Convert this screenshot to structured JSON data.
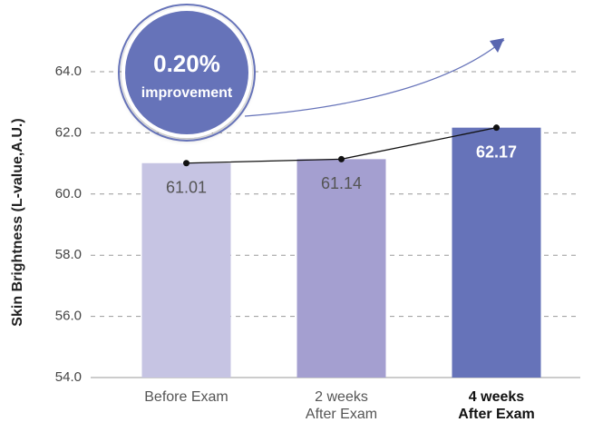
{
  "chart_data": {
    "type": "bar",
    "y_label": "Skin Brightness (L-value,A.U.)",
    "categories": [
      "Before Exam",
      "2 weeks\nAfter Exam",
      "4 weeks\nAfter Exam"
    ],
    "values": [
      61.01,
      61.14,
      62.17
    ],
    "colors": [
      "#c6c4e3",
      "#a49fd0",
      "#6673b9"
    ],
    "label_colors": [
      "#555555",
      "#555555",
      "#ffffff"
    ],
    "highlight_index": 2,
    "line_color": "#111111",
    "ylim": [
      54,
      64
    ],
    "yticks": [
      {
        "value": 54,
        "label": "54.0"
      },
      {
        "value": 56,
        "label": "56.0"
      },
      {
        "value": 58,
        "label": "58.0"
      },
      {
        "value": 60,
        "label": "60.0"
      },
      {
        "value": 62,
        "label": "62.0"
      },
      {
        "value": 64,
        "label": "64.0"
      }
    ],
    "grid": true,
    "annotation": {
      "value": "0.20%",
      "text": "improvement"
    }
  }
}
